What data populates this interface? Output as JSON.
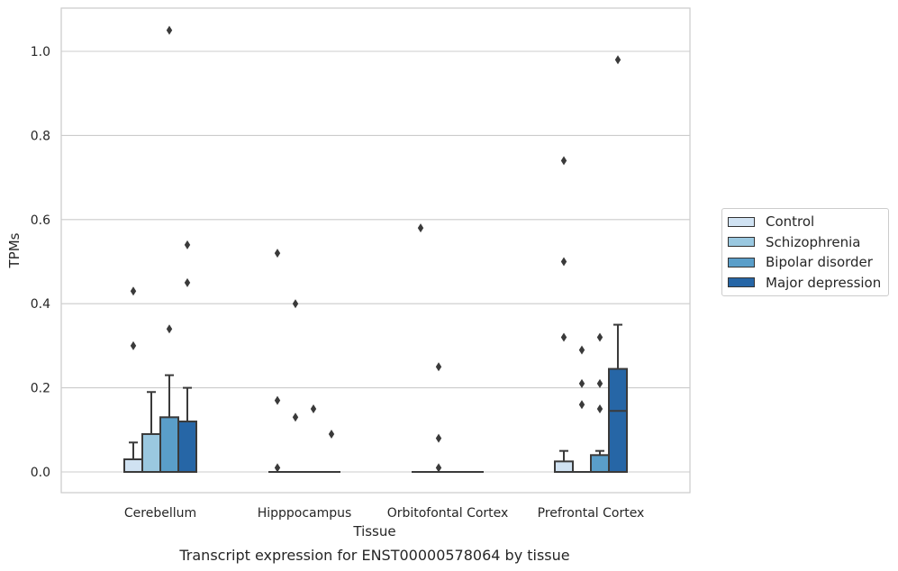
{
  "chart_data": {
    "type": "box",
    "xlabel": "Tissue",
    "ylabel": "TPMs",
    "caption": "Transcript expression for ENST00000578064 by tissue",
    "ylim": [
      -0.05,
      1.1
    ],
    "yticks": [
      0.0,
      0.2,
      0.4,
      0.6,
      0.8,
      1.0
    ],
    "ytick_labels": [
      "0.0",
      "0.2",
      "0.4",
      "0.6",
      "0.8",
      "1.0"
    ],
    "grid": "horizontal",
    "legend_position": "right",
    "categories": [
      "Cerebellum",
      "Hipppocampus",
      "Orbitofontal Cortex",
      "Prefrontal Cortex"
    ],
    "series": [
      {
        "name": "Control",
        "color": "#d0e2f2",
        "boxes": [
          {
            "q1": 0.0,
            "median": 0.0,
            "q3": 0.03,
            "whisker_low": 0.0,
            "whisker_high": 0.07,
            "outliers": [
              0.3,
              0.43
            ]
          },
          {
            "q1": 0.0,
            "median": 0.0,
            "q3": 0.0,
            "whisker_low": 0.0,
            "whisker_high": 0.0,
            "outliers": [
              0.01,
              0.17,
              0.52
            ]
          },
          {
            "q1": 0.0,
            "median": 0.0,
            "q3": 0.0,
            "whisker_low": 0.0,
            "whisker_high": 0.0,
            "outliers": [
              0.58
            ]
          },
          {
            "q1": 0.0,
            "median": 0.0,
            "q3": 0.025,
            "whisker_low": 0.0,
            "whisker_high": 0.05,
            "outliers": [
              0.32,
              0.5,
              0.74
            ]
          }
        ]
      },
      {
        "name": "Schizophrenia",
        "color": "#9ac8e0",
        "boxes": [
          {
            "q1": 0.0,
            "median": 0.0,
            "q3": 0.09,
            "whisker_low": 0.0,
            "whisker_high": 0.19,
            "outliers": []
          },
          {
            "q1": 0.0,
            "median": 0.0,
            "q3": 0.0,
            "whisker_low": 0.0,
            "whisker_high": 0.0,
            "outliers": [
              0.13,
              0.4
            ]
          },
          {
            "q1": 0.0,
            "median": 0.0,
            "q3": 0.0,
            "whisker_low": 0.0,
            "whisker_high": 0.0,
            "outliers": [
              0.01,
              0.08,
              0.25
            ]
          },
          {
            "q1": 0.0,
            "median": 0.0,
            "q3": 0.0,
            "whisker_low": 0.0,
            "whisker_high": 0.0,
            "outliers": [
              0.16,
              0.21,
              0.29
            ]
          }
        ]
      },
      {
        "name": "Bipolar disorder",
        "color": "#5a9ec9",
        "boxes": [
          {
            "q1": 0.0,
            "median": 0.0,
            "q3": 0.13,
            "whisker_low": 0.0,
            "whisker_high": 0.23,
            "outliers": [
              0.34,
              1.05
            ]
          },
          {
            "q1": 0.0,
            "median": 0.0,
            "q3": 0.0,
            "whisker_low": 0.0,
            "whisker_high": 0.0,
            "outliers": [
              0.15
            ]
          },
          {
            "q1": 0.0,
            "median": 0.0,
            "q3": 0.0,
            "whisker_low": 0.0,
            "whisker_high": 0.0,
            "outliers": []
          },
          {
            "q1": 0.0,
            "median": 0.0,
            "q3": 0.04,
            "whisker_low": 0.0,
            "whisker_high": 0.05,
            "outliers": [
              0.15,
              0.21,
              0.32
            ]
          }
        ]
      },
      {
        "name": "Major depression",
        "color": "#2666a6",
        "boxes": [
          {
            "q1": 0.0,
            "median": 0.0,
            "q3": 0.12,
            "whisker_low": 0.0,
            "whisker_high": 0.2,
            "outliers": [
              0.45,
              0.54
            ]
          },
          {
            "q1": 0.0,
            "median": 0.0,
            "q3": 0.0,
            "whisker_low": 0.0,
            "whisker_high": 0.0,
            "outliers": [
              0.09
            ]
          },
          {
            "q1": 0.0,
            "median": 0.0,
            "q3": 0.0,
            "whisker_low": 0.0,
            "whisker_high": 0.0,
            "outliers": []
          },
          {
            "q1": 0.0,
            "median": 0.145,
            "q3": 0.245,
            "whisker_low": 0.0,
            "whisker_high": 0.35,
            "outliers": [
              0.98
            ]
          }
        ]
      }
    ]
  }
}
